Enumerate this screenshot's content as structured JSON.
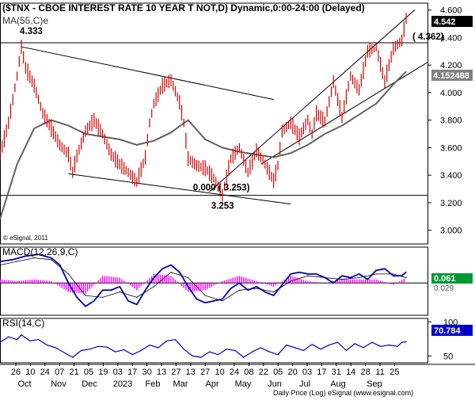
{
  "chart_data": [
    {
      "type": "line",
      "panel": "price",
      "title": "($TNX - CBOE INTEREST RATE 10 YEAR T NOT,D) Dynamic,0:00-24:00 (Delayed)",
      "moving_average_label": "MA(55,C)e",
      "watermark": "© eSignal, 2011",
      "y_ticks": [
        "4.600",
        "4.400",
        "4.200",
        "4.000",
        "3.800",
        "3.600",
        "3.400",
        "3.200",
        "3.000"
      ],
      "ylim": [
        2.9,
        4.65
      ],
      "last_price": "4.542",
      "ma_value": "4.152488",
      "series": [
        {
          "name": "$TNX",
          "x": [
            0,
            4,
            8,
            10,
            12,
            16,
            20,
            24,
            28,
            32,
            34,
            36,
            40,
            44,
            48,
            52,
            56,
            60,
            64,
            68,
            70,
            72,
            76,
            80,
            84,
            86,
            88,
            92,
            96,
            100,
            104,
            108,
            112,
            116,
            120,
            124,
            128,
            130,
            132,
            136,
            140,
            144,
            146,
            148,
            152,
            156,
            160,
            164,
            168,
            172,
            176,
            180,
            184,
            188,
            190
          ],
          "values": [
            3.55,
            3.78,
            4.12,
            4.333,
            4.18,
            4.05,
            3.85,
            3.74,
            3.62,
            3.55,
            3.42,
            3.54,
            3.72,
            3.8,
            3.7,
            3.55,
            3.48,
            3.42,
            3.35,
            3.53,
            3.78,
            3.92,
            4.05,
            4.09,
            3.93,
            3.78,
            3.52,
            3.47,
            3.45,
            3.38,
            3.253,
            3.52,
            3.6,
            3.42,
            3.58,
            3.48,
            3.36,
            3.47,
            3.72,
            3.78,
            3.68,
            3.8,
            3.7,
            3.85,
            3.79,
            4.08,
            3.82,
            4.12,
            4.02,
            4.3,
            4.33,
            4.08,
            4.32,
            4.38,
            4.542
          ]
        },
        {
          "name": "MA(55,C)e",
          "x": [
            0,
            8,
            16,
            24,
            32,
            40,
            48,
            56,
            64,
            72,
            80,
            88,
            96,
            104,
            112,
            120,
            128,
            136,
            144,
            152,
            160,
            168,
            176,
            184,
            190
          ],
          "values": [
            3.08,
            3.48,
            3.74,
            3.8,
            3.76,
            3.7,
            3.68,
            3.66,
            3.62,
            3.65,
            3.71,
            3.8,
            3.66,
            3.6,
            3.57,
            3.55,
            3.53,
            3.56,
            3.62,
            3.7,
            3.76,
            3.84,
            3.92,
            4.06,
            4.152488
          ]
        }
      ],
      "annotations": [
        {
          "text": "4.333",
          "x": 10,
          "y": 4.333
        },
        {
          "text": "0.000 ( 3.253)",
          "x": 104,
          "y": 3.253
        },
        {
          "text": "3.253",
          "x": 104,
          "y": 3.253
        },
        {
          "text": "( 4.362)",
          "x": 190,
          "y": 4.362
        }
      ],
      "reference_lines": [
        {
          "type": "horizontal",
          "value": 4.362
        },
        {
          "type": "horizontal",
          "value": 3.253
        },
        {
          "type": "trend",
          "from": [
            10,
            4.333
          ],
          "to": [
            128,
            3.95
          ]
        },
        {
          "type": "trend",
          "from": [
            32,
            3.41
          ],
          "to": [
            136,
            3.19
          ]
        },
        {
          "type": "trend",
          "from": [
            98,
            3.28
          ],
          "to": [
            194,
            4.6
          ]
        },
        {
          "type": "trend",
          "from": [
            122,
            3.48
          ],
          "to": [
            200,
            4.22
          ]
        }
      ]
    },
    {
      "type": "line",
      "panel": "macd",
      "title": "MACD(12,26,9,C)",
      "ylim": [
        -0.18,
        0.2
      ],
      "value_labels": [
        "0.061",
        "0.029"
      ],
      "series": [
        {
          "name": "MACD",
          "x": [
            0,
            6,
            12,
            18,
            24,
            28,
            32,
            36,
            40,
            44,
            48,
            52,
            56,
            60,
            64,
            68,
            72,
            76,
            80,
            84,
            88,
            92,
            96,
            100,
            104,
            108,
            112,
            116,
            120,
            124,
            128,
            132,
            136,
            140,
            144,
            148,
            152,
            156,
            160,
            164,
            168,
            172,
            176,
            180,
            184,
            188,
            190
          ],
          "values": [
            0.12,
            0.13,
            0.15,
            0.16,
            0.14,
            0.1,
            0.0,
            -0.08,
            -0.13,
            -0.1,
            -0.04,
            -0.04,
            -0.02,
            -0.1,
            -0.12,
            -0.04,
            0.03,
            0.08,
            0.1,
            0.06,
            -0.02,
            -0.09,
            -0.11,
            -0.1,
            -0.09,
            -0.03,
            0.0,
            -0.04,
            -0.02,
            -0.05,
            -0.07,
            -0.01,
            0.05,
            0.06,
            0.05,
            0.05,
            0.03,
            0.0,
            0.04,
            0.03,
            0.05,
            0.02,
            0.07,
            0.08,
            0.04,
            0.04,
            0.061
          ]
        },
        {
          "name": "Signal",
          "x": [
            0,
            8,
            16,
            24,
            32,
            40,
            48,
            56,
            64,
            72,
            80,
            88,
            96,
            104,
            112,
            120,
            128,
            136,
            144,
            152,
            160,
            168,
            176,
            184,
            190
          ],
          "values": [
            0.1,
            0.12,
            0.14,
            0.13,
            0.05,
            -0.07,
            -0.08,
            -0.05,
            -0.08,
            -0.02,
            0.06,
            0.03,
            -0.07,
            -0.1,
            -0.04,
            -0.03,
            -0.05,
            0.01,
            0.04,
            0.03,
            0.02,
            0.03,
            0.05,
            0.05,
            0.029
          ]
        },
        {
          "name": "Histogram",
          "x": [
            0,
            8,
            16,
            24,
            32,
            40,
            48,
            56,
            64,
            72,
            80,
            88,
            96,
            104,
            112,
            120,
            128,
            136,
            144,
            152,
            160,
            168,
            176,
            184,
            190
          ],
          "values": [
            0.02,
            0.01,
            0.02,
            0.01,
            -0.05,
            -0.06,
            0.04,
            0.03,
            -0.04,
            0.05,
            0.04,
            -0.05,
            -0.04,
            0.01,
            0.04,
            0.01,
            -0.02,
            0.04,
            0.01,
            0.0,
            0.02,
            0.02,
            0.02,
            -0.01,
            0.03
          ]
        }
      ]
    },
    {
      "type": "line",
      "panel": "rsi",
      "title": "RSI(14,C)",
      "y_ticks": [
        "100",
        "50"
      ],
      "ylim": [
        40,
        105
      ],
      "last_value": "70.784",
      "series": [
        {
          "name": "RSI",
          "x": [
            0,
            4,
            8,
            10,
            14,
            18,
            22,
            26,
            30,
            34,
            38,
            42,
            46,
            50,
            54,
            58,
            62,
            66,
            70,
            74,
            78,
            82,
            86,
            90,
            94,
            98,
            102,
            106,
            110,
            114,
            118,
            122,
            126,
            130,
            134,
            138,
            142,
            146,
            150,
            154,
            158,
            162,
            166,
            170,
            174,
            178,
            182,
            186,
            188,
            190
          ],
          "values": [
            70,
            78,
            74,
            81,
            72,
            74,
            66,
            62,
            55,
            48,
            58,
            60,
            64,
            63,
            56,
            59,
            52,
            58,
            66,
            62,
            72,
            74,
            60,
            50,
            48,
            56,
            52,
            60,
            58,
            48,
            56,
            62,
            56,
            52,
            66,
            62,
            58,
            67,
            60,
            66,
            70,
            58,
            68,
            62,
            70,
            64,
            66,
            64,
            70,
            70.784
          ]
        }
      ]
    }
  ],
  "x_axis": {
    "day_labels": [
      "26",
      "10",
      "24",
      "07",
      "21",
      "05",
      "19",
      "03",
      "17",
      "30",
      "13",
      "27",
      "13",
      "27",
      "10",
      "24",
      "08",
      "22",
      "05",
      "20",
      "03",
      "17",
      "31",
      "14",
      "28",
      "11",
      "25"
    ],
    "month_labels": [
      "Oct",
      "Nov",
      "Dec",
      "2023",
      "Feb",
      "Mar",
      "Apr",
      "May",
      "Jun",
      "Jul",
      "Aug",
      "Sep"
    ]
  },
  "footer": "Daily  Price (Log)  eSignal (www.esignal.com)",
  "colors": {
    "price": "#cc0000",
    "ma": "#606060",
    "macd": "#0000aa",
    "signal": "#000000",
    "histogram": "#ff00ff",
    "rsi": "#0000cc",
    "label_dark": "#000000",
    "label_green": "#009933",
    "label_gray": "#808080",
    "label_blue": "#0000cc"
  }
}
